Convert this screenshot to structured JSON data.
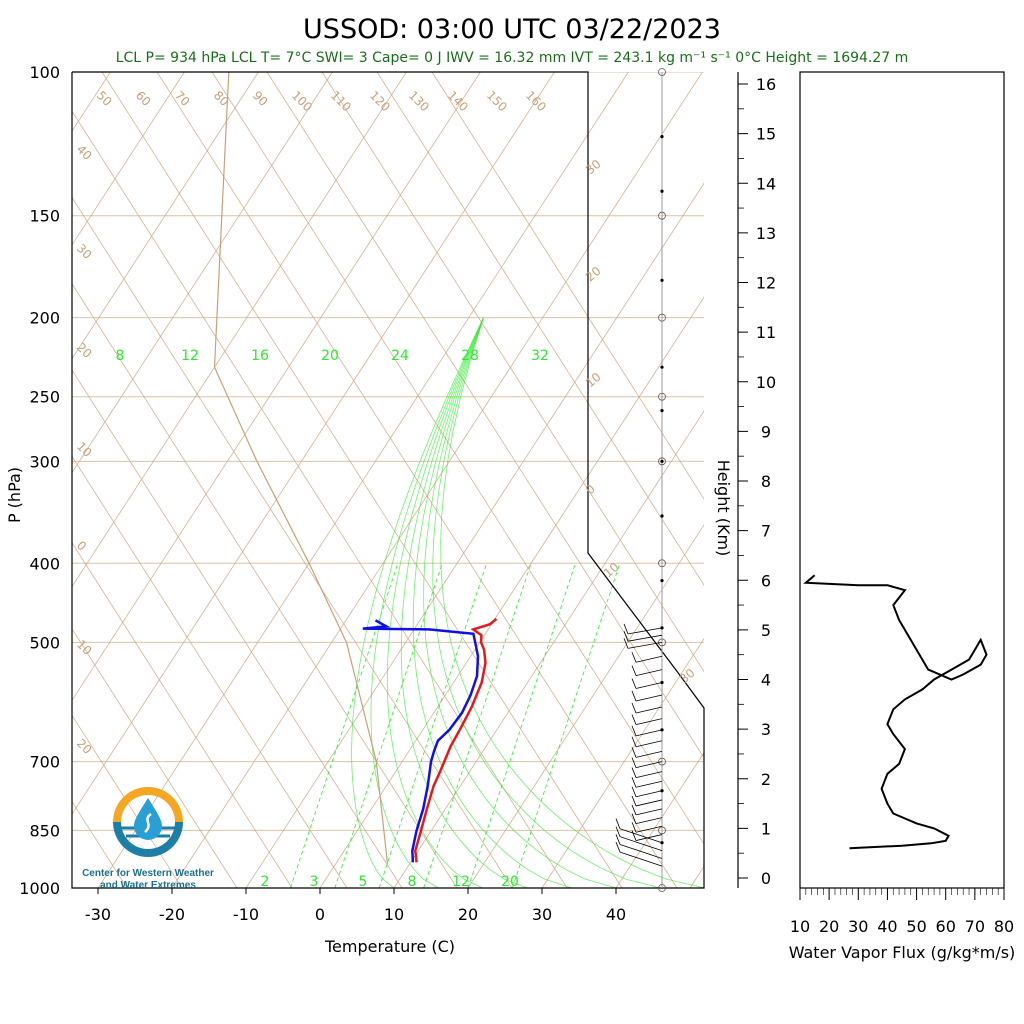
{
  "title": "USSOD: 03:00 UTC 03/22/2023",
  "stats": "LCL P= 934 hPa  LCL T= 7°C  SWI= 3  Cape= 0 J  IWV = 16.32 mm  IVT = 243.1 kg m⁻¹ s⁻¹  0°C Height = 1694.27 m",
  "logo": {
    "line1": "Center for Western Weather",
    "line2": "and Water Extremes",
    "colors": {
      "sun": "#f5a623",
      "water": "#1e7fa6",
      "drop": "#2a9fd6"
    }
  },
  "colors": {
    "temperature": "#e31a1c",
    "dewpoint": "#1010e0",
    "isotherm": "#c8a07a",
    "mixing": "#32e832",
    "flux": "#000000",
    "stats": "#1a6e1a"
  },
  "chart_data": [
    {
      "type": "skew-t",
      "xlabel": "Temperature (C)",
      "ylabel": "P (hPa)",
      "xlim": [
        -34,
        50
      ],
      "ylim": [
        1000,
        100
      ],
      "log_pressure": true,
      "x_ticks": [
        -30,
        -20,
        -10,
        0,
        10,
        20,
        30,
        40
      ],
      "y_ticks": [
        100,
        150,
        200,
        250,
        300,
        400,
        500,
        700,
        850,
        1000
      ],
      "mixing_ratio_labels_top": [
        8,
        12,
        16,
        20,
        24,
        28,
        32
      ],
      "mixing_ratio_labels_bottom": [
        2,
        3,
        5,
        8,
        12,
        20
      ],
      "isotherm_labels_top": [
        50,
        60,
        70,
        80,
        90,
        100,
        110,
        120,
        130,
        140,
        150,
        160
      ],
      "isotherm_labels_left": [
        40,
        30,
        20,
        10,
        0,
        10,
        20
      ],
      "theta_labels_right": [
        30,
        20,
        10,
        0,
        10,
        30
      ],
      "temperature": [
        {
          "p": 930,
          "t": 10.8
        },
        {
          "p": 900,
          "t": 9.6
        },
        {
          "p": 850,
          "t": 8.6
        },
        {
          "p": 800,
          "t": 7.5
        },
        {
          "p": 750,
          "t": 6.4
        },
        {
          "p": 720,
          "t": 6.0
        },
        {
          "p": 700,
          "t": 5.7
        },
        {
          "p": 670,
          "t": 5.2
        },
        {
          "p": 640,
          "t": 5.0
        },
        {
          "p": 600,
          "t": 4.6
        },
        {
          "p": 560,
          "t": 3.8
        },
        {
          "p": 530,
          "t": 2.6
        },
        {
          "p": 510,
          "t": 1.2
        },
        {
          "p": 500,
          "t": 0.2
        },
        {
          "p": 490,
          "t": -0.4
        },
        {
          "p": 482,
          "t": -2.0
        },
        {
          "p": 475,
          "t": -0.2
        },
        {
          "p": 468,
          "t": 0.2
        }
      ],
      "dewpoint": [
        {
          "p": 930,
          "t": 10.3
        },
        {
          "p": 900,
          "t": 9.2
        },
        {
          "p": 850,
          "t": 8.0
        },
        {
          "p": 800,
          "t": 7.0
        },
        {
          "p": 750,
          "t": 5.6
        },
        {
          "p": 720,
          "t": 4.6
        },
        {
          "p": 700,
          "t": 3.9
        },
        {
          "p": 680,
          "t": 3.4
        },
        {
          "p": 660,
          "t": 3.0
        },
        {
          "p": 640,
          "t": 3.6
        },
        {
          "p": 610,
          "t": 3.8
        },
        {
          "p": 580,
          "t": 3.4
        },
        {
          "p": 550,
          "t": 2.6
        },
        {
          "p": 520,
          "t": 1.0
        },
        {
          "p": 500,
          "t": -0.6
        },
        {
          "p": 488,
          "t": -1.6
        },
        {
          "p": 482,
          "t": -8.0
        },
        {
          "p": 481,
          "t": -17.0
        },
        {
          "p": 478,
          "t": -14.0
        },
        {
          "p": 470,
          "t": -16.0
        }
      ],
      "parcel": [
        {
          "p": 934,
          "t": 7.0
        },
        {
          "p": 700,
          "t": -3.5
        },
        {
          "p": 500,
          "t": -18.0
        },
        {
          "p": 400,
          "t": -30.0
        },
        {
          "p": 300,
          "t": -46.0
        },
        {
          "p": 230,
          "t": -60.0
        },
        {
          "p": 100,
          "t": -84.0
        }
      ],
      "wind_barb_levels": [
        480,
        490,
        500,
        520,
        540,
        560,
        580,
        600,
        620,
        640,
        660,
        680,
        700,
        720,
        740,
        760,
        780,
        800,
        820,
        840,
        860,
        880,
        900,
        920,
        940
      ]
    },
    {
      "type": "line",
      "xlabel": "Water Vapor Flux (g/kg*m/s)",
      "ylabel": "Height (Km)",
      "xlim": [
        10,
        80
      ],
      "ylim": [
        0,
        16
      ],
      "x_ticks": [
        10,
        20,
        30,
        40,
        50,
        60,
        70,
        80
      ],
      "y_ticks": [
        0,
        1,
        2,
        3,
        4,
        5,
        6,
        7,
        8,
        9,
        10,
        11,
        12,
        13,
        14,
        15,
        16
      ],
      "x": [
        27,
        45,
        55,
        60,
        61,
        56,
        50,
        42,
        40,
        38,
        40,
        44,
        46,
        42,
        40,
        42,
        46,
        52,
        56,
        62,
        68,
        70,
        72,
        74,
        72,
        66,
        62,
        54,
        48,
        44,
        42,
        46,
        40,
        30,
        12,
        14,
        15
      ],
      "y": [
        0.6,
        0.65,
        0.7,
        0.75,
        0.85,
        1.0,
        1.1,
        1.3,
        1.5,
        1.8,
        2.1,
        2.3,
        2.6,
        2.9,
        3.1,
        3.4,
        3.6,
        3.8,
        4.0,
        4.2,
        4.4,
        4.6,
        4.8,
        4.5,
        4.3,
        4.1,
        4.0,
        4.2,
        4.8,
        5.2,
        5.5,
        5.8,
        5.9,
        5.9,
        5.95,
        6.05,
        6.1
      ]
    }
  ]
}
